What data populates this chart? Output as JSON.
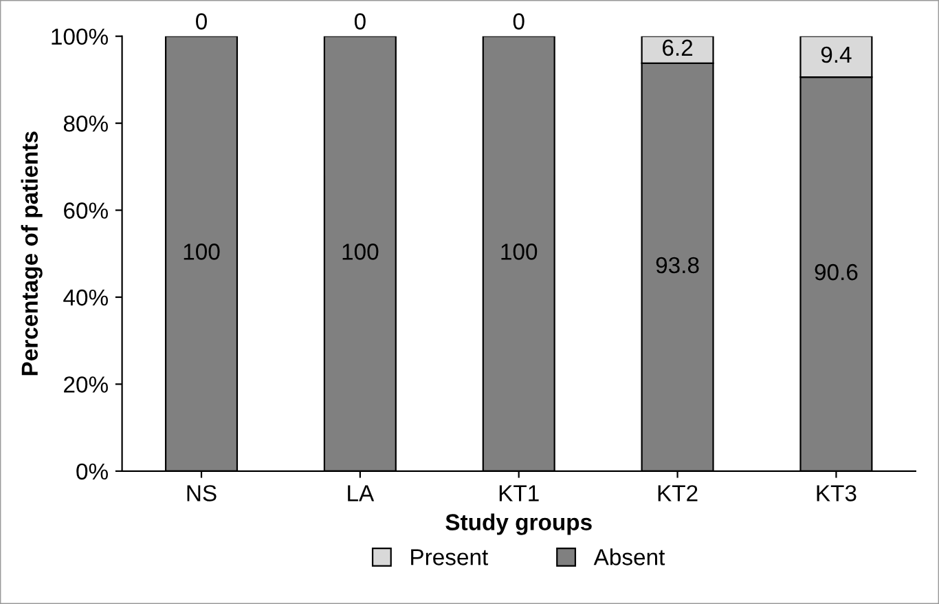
{
  "chart_data": {
    "type": "bar",
    "stacked": true,
    "xlabel": "Study groups",
    "ylabel": "Percentage of patients",
    "categories": [
      "NS",
      "LA",
      "KT1",
      "KT2",
      "KT3"
    ],
    "series": [
      {
        "name": "Absent",
        "color": "#808080",
        "values": [
          100,
          100,
          100,
          93.8,
          90.6
        ]
      },
      {
        "name": "Present",
        "color": "#d9d9d9",
        "values": [
          0,
          0,
          0,
          6.2,
          9.4
        ]
      }
    ],
    "ylim": [
      0,
      100
    ],
    "yticks": [
      {
        "value": 0,
        "label": "0%"
      },
      {
        "value": 20,
        "label": "20%"
      },
      {
        "value": 40,
        "label": "40%"
      },
      {
        "value": 60,
        "label": "60%"
      },
      {
        "value": 80,
        "label": "80%"
      },
      {
        "value": 100,
        "label": "100%"
      }
    ],
    "data_labels": true,
    "legend": "bottom",
    "grid": false
  }
}
